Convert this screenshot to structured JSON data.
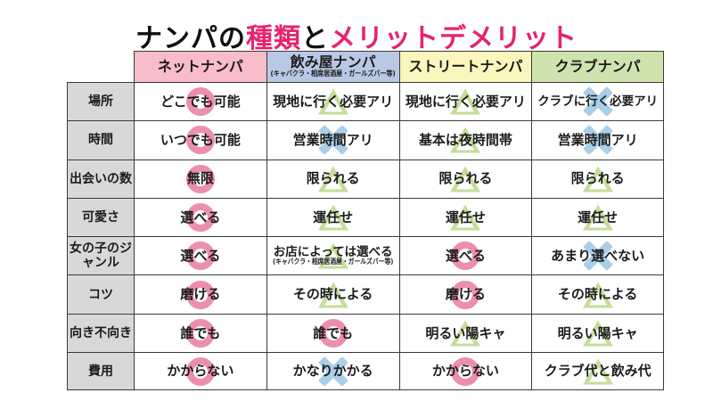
{
  "title": {
    "parts": [
      {
        "text": "ナンパの",
        "accent": false
      },
      {
        "text": "種類",
        "accent": true
      },
      {
        "text": "と",
        "accent": false
      },
      {
        "text": "メリットデメリット",
        "accent": true
      }
    ]
  },
  "colors": {
    "title_text": "#111111",
    "accent": "#e5246e",
    "border": "#3a3a3a",
    "label_bg": "#d8d8d8",
    "circle_mark": "#ec8fae",
    "cross_mark": "#a9cfe9",
    "triangle_mark": "#c6dd98",
    "header_net": "#f8bcca",
    "header_bar": "#b9c8e4",
    "header_street": "#fbf6bd",
    "header_club": "#cfe3ae"
  },
  "table": {
    "columns": [
      {
        "label": "ネットナンパ",
        "sub": "",
        "bg": "#f8bcca"
      },
      {
        "label": "飲み屋ナンパ",
        "sub": "(キャバクラ・相席居酒屋・ガールズバー等)",
        "bg": "#b9c8e4"
      },
      {
        "label": "ストリートナンパ",
        "sub": "",
        "bg": "#fbf6bd"
      },
      {
        "label": "クラブナンパ",
        "sub": "",
        "bg": "#cfe3ae"
      }
    ],
    "rows": [
      {
        "label": "場所",
        "cells": [
          {
            "text": "どこでも可能",
            "sub": "",
            "mark": "circle"
          },
          {
            "text": "現地に行く必要アリ",
            "sub": "",
            "mark": "triangle"
          },
          {
            "text": "現地に行く必要アリ",
            "sub": "",
            "mark": "triangle"
          },
          {
            "text": "クラブに行く必要アリ",
            "sub": "",
            "mark": "cross"
          }
        ]
      },
      {
        "label": "時間",
        "cells": [
          {
            "text": "いつでも可能",
            "sub": "",
            "mark": "circle"
          },
          {
            "text": "営業時間アリ",
            "sub": "",
            "mark": "cross"
          },
          {
            "text": "基本は夜時間帯",
            "sub": "",
            "mark": "triangle"
          },
          {
            "text": "営業時間アリ",
            "sub": "",
            "mark": "cross"
          }
        ]
      },
      {
        "label": "出会いの数",
        "cells": [
          {
            "text": "無限",
            "sub": "",
            "mark": "circle"
          },
          {
            "text": "限られる",
            "sub": "",
            "mark": "triangle"
          },
          {
            "text": "限られる",
            "sub": "",
            "mark": "triangle"
          },
          {
            "text": "限られる",
            "sub": "",
            "mark": "triangle"
          }
        ]
      },
      {
        "label": "可愛さ",
        "cells": [
          {
            "text": "選べる",
            "sub": "",
            "mark": "circle"
          },
          {
            "text": "運任せ",
            "sub": "",
            "mark": "triangle"
          },
          {
            "text": "運任せ",
            "sub": "",
            "mark": "triangle"
          },
          {
            "text": "運任せ",
            "sub": "",
            "mark": "triangle"
          }
        ]
      },
      {
        "label": "女の子のジャンル",
        "cells": [
          {
            "text": "選べる",
            "sub": "",
            "mark": "circle"
          },
          {
            "text": "お店によっては選べる",
            "sub": "(キャバクラ・相席居酒屋・ガールズバー等)",
            "mark": "triangle"
          },
          {
            "text": "選べる",
            "sub": "",
            "mark": "circle"
          },
          {
            "text": "あまり選べない",
            "sub": "",
            "mark": "cross"
          }
        ]
      },
      {
        "label": "コツ",
        "cells": [
          {
            "text": "磨ける",
            "sub": "",
            "mark": "circle"
          },
          {
            "text": "その時による",
            "sub": "",
            "mark": "triangle"
          },
          {
            "text": "磨ける",
            "sub": "",
            "mark": "circle"
          },
          {
            "text": "その時による",
            "sub": "",
            "mark": "triangle"
          }
        ]
      },
      {
        "label": "向き不向き",
        "cells": [
          {
            "text": "誰でも",
            "sub": "",
            "mark": "circle"
          },
          {
            "text": "誰でも",
            "sub": "",
            "mark": "circle"
          },
          {
            "text": "明るい陽キャ",
            "sub": "",
            "mark": "triangle"
          },
          {
            "text": "明るい陽キャ",
            "sub": "",
            "mark": "triangle"
          }
        ]
      },
      {
        "label": "費用",
        "cells": [
          {
            "text": "かからない",
            "sub": "",
            "mark": "circle"
          },
          {
            "text": "かなりかかる",
            "sub": "",
            "mark": "cross"
          },
          {
            "text": "かからない",
            "sub": "",
            "mark": "circle"
          },
          {
            "text": "クラブ代と飲み代",
            "sub": "",
            "mark": "triangle"
          }
        ]
      }
    ]
  },
  "chart_data": {
    "type": "table",
    "title": "ナンパの種類とメリットデメリット",
    "columns": [
      "ネットナンパ",
      "飲み屋ナンパ (キャバクラ・相席居酒屋・ガールズバー等)",
      "ストリートナンパ",
      "クラブナンパ"
    ],
    "row_labels": [
      "場所",
      "時間",
      "出会いの数",
      "可愛さ",
      "女の子のジャンル",
      "コツ",
      "向き不向き",
      "費用"
    ],
    "values": [
      [
        "どこでも可能",
        "現地に行く必要アリ",
        "現地に行く必要アリ",
        "クラブに行く必要アリ"
      ],
      [
        "いつでも可能",
        "営業時間アリ",
        "基本は夜時間帯",
        "営業時間アリ"
      ],
      [
        "無限",
        "限られる",
        "限られる",
        "限られる"
      ],
      [
        "選べる",
        "運任せ",
        "運任せ",
        "運任せ"
      ],
      [
        "選べる",
        "お店によっては選べる (キャバクラ・相席居酒屋・ガールズバー等)",
        "選べる",
        "あまり選べない"
      ],
      [
        "磨ける",
        "その時による",
        "磨ける",
        "その時による"
      ],
      [
        "誰でも",
        "誰でも",
        "明るい陽キャ",
        "明るい陽キャ"
      ],
      [
        "かからない",
        "かなりかかる",
        "かからない",
        "クラブ代と飲み代"
      ]
    ],
    "ratings": [
      [
        "○",
        "△",
        "△",
        "×"
      ],
      [
        "○",
        "×",
        "△",
        "×"
      ],
      [
        "○",
        "△",
        "△",
        "△"
      ],
      [
        "○",
        "△",
        "△",
        "△"
      ],
      [
        "○",
        "△",
        "○",
        "×"
      ],
      [
        "○",
        "△",
        "○",
        "△"
      ],
      [
        "○",
        "○",
        "△",
        "△"
      ],
      [
        "○",
        "×",
        "○",
        "△"
      ]
    ],
    "rating_legend": {
      "○": "circle (pink) = good",
      "△": "triangle (green) = depends",
      "×": "cross (blue) = bad"
    }
  }
}
